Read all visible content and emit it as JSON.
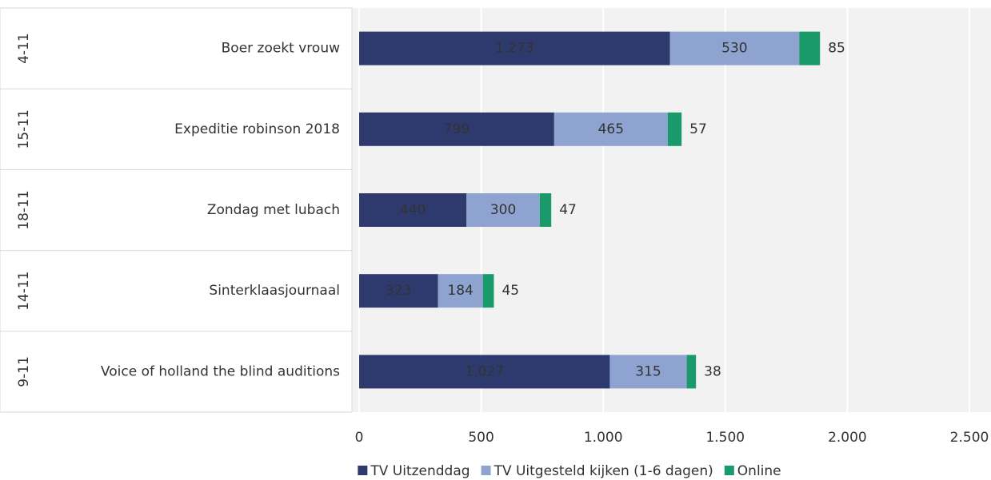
{
  "chart_data": {
    "type": "stacked_barh",
    "groups": [
      "4-11",
      "15-11",
      "18-11",
      "14-11",
      "9-11"
    ],
    "categories": [
      "Boer zoekt vrouw",
      "Expeditie robinson 2018",
      "Zondag met lubach",
      "Sinterklaasjournaal",
      "Voice of holland the blind auditions"
    ],
    "series": [
      {
        "name": "TV Uitzenddag",
        "color": "#2e3a6e",
        "values": [
          1273,
          799,
          440,
          323,
          1027
        ],
        "value_labels": [
          "1.273",
          "799",
          "440",
          "323",
          "1.027"
        ]
      },
      {
        "name": "TV Uitgesteld kijken (1-6 dagen)",
        "color": "#8ea3cf",
        "values": [
          530,
          465,
          300,
          184,
          315
        ]
      },
      {
        "name": "Online",
        "color": "#1a9a6a",
        "values": [
          85,
          57,
          47,
          45,
          38
        ]
      }
    ],
    "xlim": [
      0,
      2500
    ],
    "xticks": [
      0,
      500,
      {
        "value": 1000,
        "label": "1.000"
      },
      {
        "value": 1500,
        "label": "1.500"
      },
      {
        "value": 2000,
        "label": "2.000"
      },
      {
        "value": 2500,
        "label": "2.500"
      }
    ],
    "grid": true
  }
}
